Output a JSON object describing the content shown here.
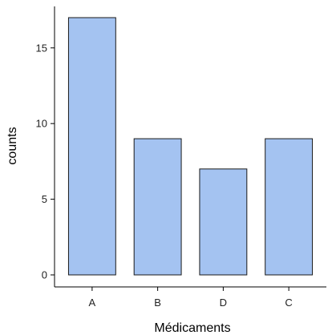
{
  "chart_data": {
    "type": "bar",
    "categories": [
      "A",
      "B",
      "D",
      "C"
    ],
    "values": [
      17,
      9,
      7,
      9
    ],
    "title": "",
    "xlabel": "Médicaments",
    "ylabel": "counts",
    "ylim": [
      0,
      17.85
    ],
    "yticks": [
      0,
      5,
      10,
      15
    ],
    "grid": false,
    "legend": "none",
    "colors": {
      "bar_fill": "#a4c3f1",
      "bar_stroke": "#1a1a1a",
      "axis": "#000000"
    }
  }
}
